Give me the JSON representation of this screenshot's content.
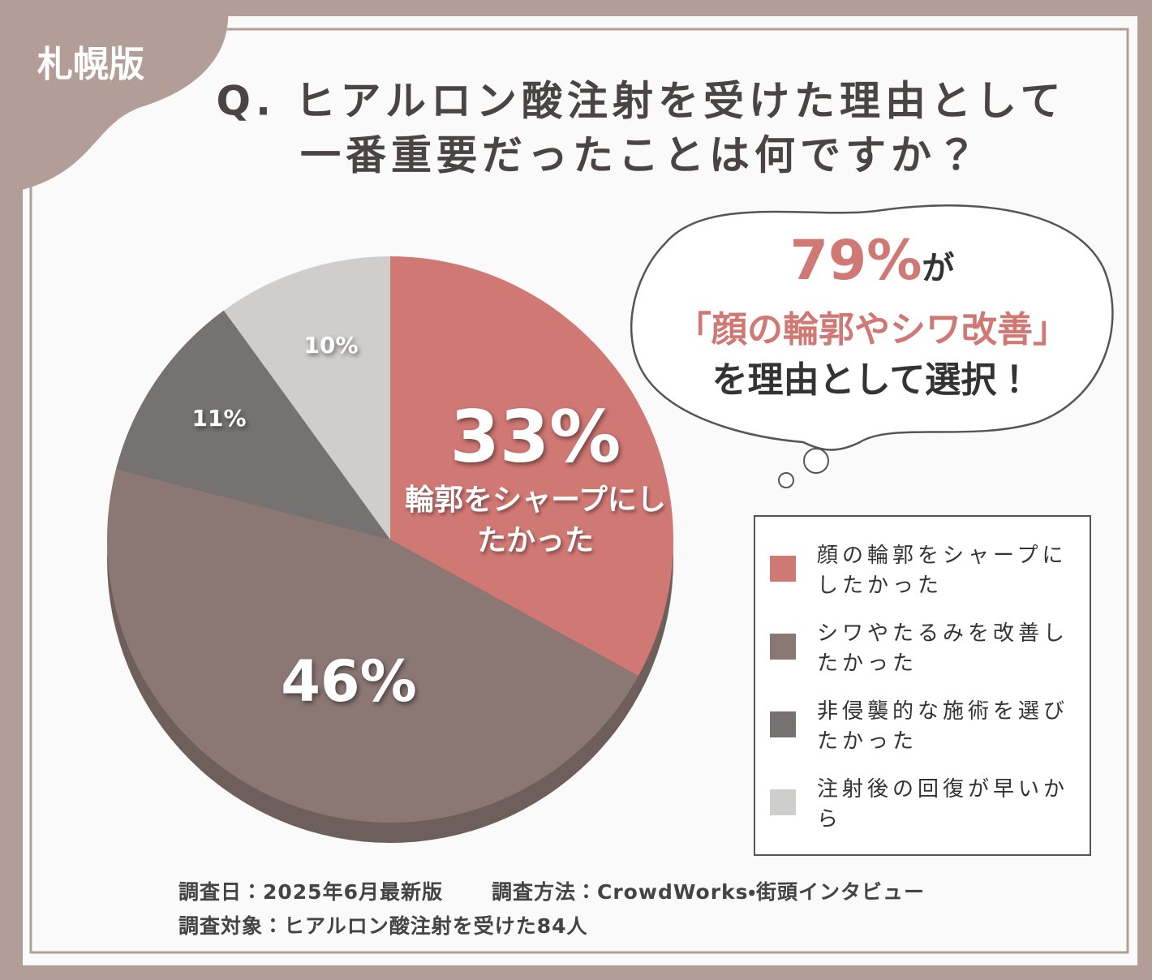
{
  "badge": "札幌版",
  "chart_data": {
    "type": "pie",
    "title": [
      "Q. ヒアルロン酸注射を受けた理由として",
      "一番重要だったことは何ですか？"
    ],
    "categories": [
      "顔の輪郭をシャープにしたかった",
      "シワやたるみを改善したかった",
      "非侵襲的な施術を選びたかった",
      "注射後の回復が早いから"
    ],
    "values": [
      33,
      46,
      11,
      10
    ],
    "value_labels": [
      "33%",
      "46%",
      "11%",
      "10%"
    ],
    "colors": [
      "#d07874",
      "#8b7774",
      "#767272",
      "#d0cecd"
    ],
    "annotation": "輪郭をシャープにしたかった"
  },
  "callout": {
    "figure": "79%",
    "particle": "が",
    "highlight": "「顔の輪郭やシワ改善」",
    "tail": "を理由として選択！"
  },
  "footer": [
    "調査日：2025年6月最新版",
    "調査方法：CrowdWorks・街頭インタビュー",
    "調査対象：ヒアルロン酸注射を受けた84人"
  ]
}
